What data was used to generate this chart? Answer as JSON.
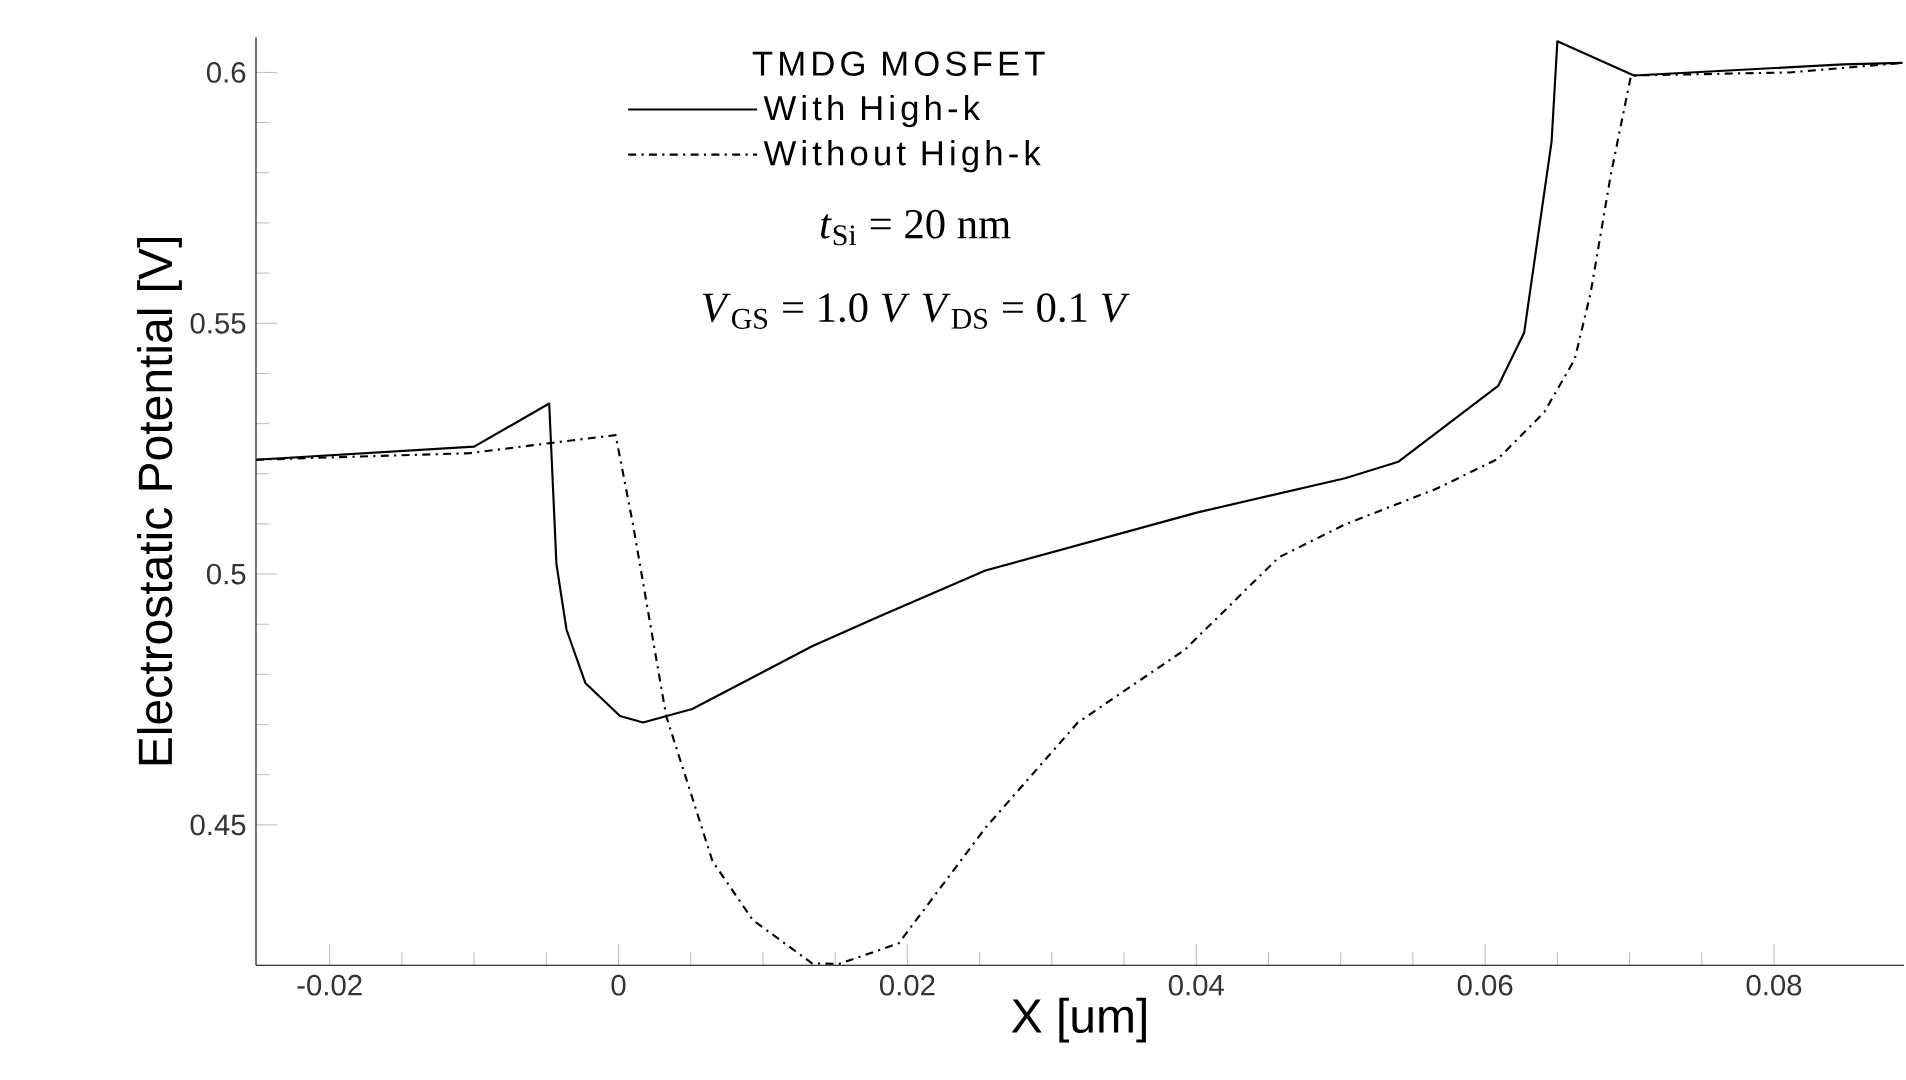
{
  "chart_data": {
    "type": "line",
    "xlabel": "X [um]",
    "ylabel": "Electrostatic Potential [V]",
    "legend_title": "TMDG MOSFET",
    "annotations": [
      "*t*$_{Si}$ = 20 nm",
      "*V*$_{GS}$ = 1.0 *V*      *V*$_{DS}$ = 0.1 *V*"
    ],
    "xlim": [
      -0.0251,
      0.089
    ],
    "ylim": [
      0.422,
      0.607
    ],
    "xticks": [
      -0.02,
      0,
      0.02,
      0.04,
      0.06,
      0.08
    ],
    "yticks": [
      0.45,
      0.5,
      0.55,
      0.6
    ],
    "legend": "top",
    "grid": false,
    "series": [
      {
        "name": "With High-k",
        "color": "#000000",
        "line_style": "solid",
        "x": [
          -0.0251,
          -0.01,
          -0.0048,
          -0.0043,
          -0.0036,
          -0.0023,
          0.0001,
          0.0017,
          0.0051,
          0.0134,
          0.018,
          0.0254,
          0.0401,
          0.0503,
          0.054,
          0.0609,
          0.0627,
          0.0646,
          0.065,
          0.0703,
          0.0848,
          0.0889
        ],
        "values": [
          0.5228,
          0.5254,
          0.534,
          0.502,
          0.4889,
          0.4783,
          0.4717,
          0.4704,
          0.4731,
          0.4856,
          0.4915,
          0.5007,
          0.5123,
          0.5191,
          0.5224,
          0.5375,
          0.5481,
          0.5862,
          0.6062,
          0.5994,
          0.6016,
          0.6019
        ]
      },
      {
        "name": "Without High-k",
        "color": "#000000",
        "line_style": "dashdot",
        "x": [
          -0.0251,
          -0.0103,
          -0.0059,
          -0.0002,
          0.001,
          0.0033,
          0.0065,
          0.0093,
          0.0134,
          0.0153,
          0.0194,
          0.0254,
          0.0318,
          0.0392,
          0.0457,
          0.0503,
          0.0567,
          0.0609,
          0.0641,
          0.0662,
          0.0673,
          0.0687,
          0.0701,
          0.0811,
          0.0889
        ],
        "values": [
          0.5228,
          0.5241,
          0.5257,
          0.5277,
          0.5099,
          0.4717,
          0.4428,
          0.431,
          0.4224,
          0.4223,
          0.4264,
          0.4494,
          0.4704,
          0.4849,
          0.5033,
          0.5099,
          0.5171,
          0.523,
          0.5323,
          0.5428,
          0.556,
          0.5796,
          0.5994,
          0.6,
          0.6019
        ]
      }
    ]
  }
}
